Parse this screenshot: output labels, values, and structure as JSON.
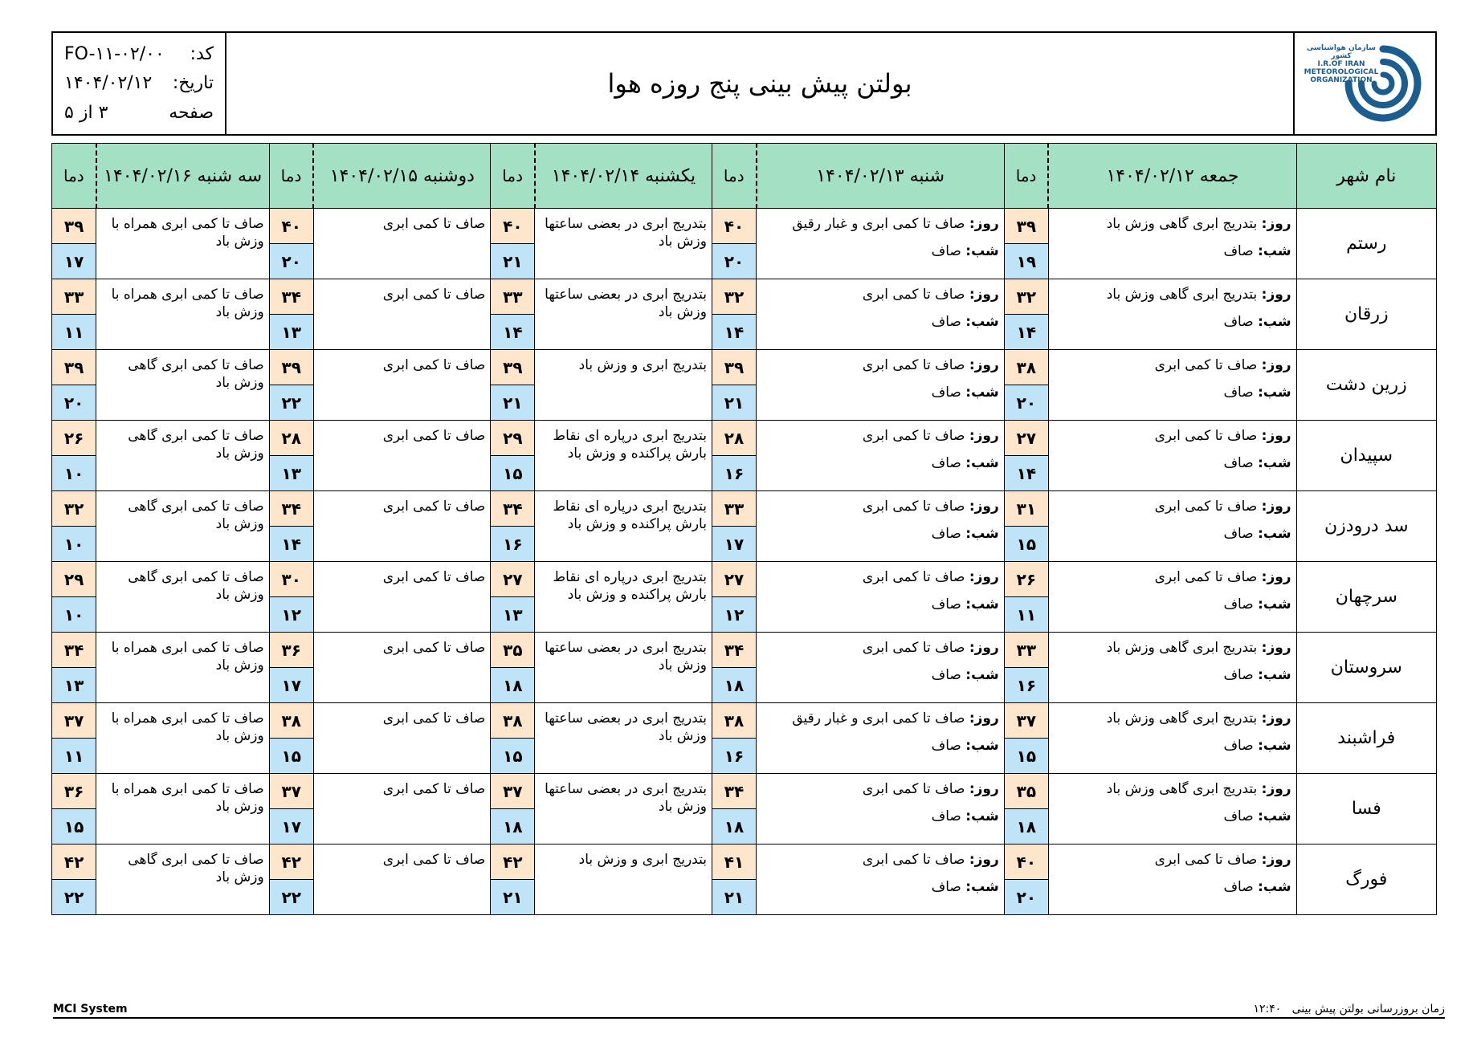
{
  "header": {
    "logo_text_fa": "سازمان هواشناسی کشور",
    "logo_text_en": "I.R.OF IRAN METEOROLOGICAL ORGANIZATION",
    "title": "بولتن پیش بینی پنج روزه هوا",
    "code_label": "کد:",
    "code_value": "FO-۱۱-۰۲/۰۰",
    "date_label": "تاریخ:",
    "date_value": "۱۴۰۴/۰۲/۱۲",
    "page_label": "صفحه",
    "page_text": "۳ از ۵"
  },
  "table": {
    "city_header": "نام شهر",
    "temp_header": "دما",
    "day_label": "روز:",
    "night_label": "شب:",
    "days": [
      "جمعه ۱۴۰۴/۰۲/۱۲",
      "شنبه ۱۴۰۴/۰۲/۱۳",
      "یکشنبه ۱۴۰۴/۰۲/۱۴",
      "دوشنبه ۱۴۰۴/۰۲/۱۵",
      "سه شنبه ۱۴۰۴/۰۲/۱۶"
    ],
    "rows": [
      {
        "city": "رستم",
        "d1_day": "بتدریج ابری گاهی وزش باد",
        "d1_night": "صاف",
        "d1_max": "۳۹",
        "d1_min": "۱۹",
        "d2_day": "صاف تا کمی ابری و غبار رقیق",
        "d2_night": "صاف",
        "d2_max": "۴۰",
        "d2_min": "۲۰",
        "d3": "بتدریج ابری در بعضی ساعتها وزش باد",
        "d3_max": "۴۰",
        "d3_min": "۲۱",
        "d4": "صاف تا کمی ابری",
        "d4_max": "۴۰",
        "d4_min": "۲۰",
        "d5": "صاف تا کمی ابری همراه با وزش باد",
        "d5_max": "۳۹",
        "d5_min": "۱۷"
      },
      {
        "city": "زرقان",
        "d1_day": "بتدریج ابری گاهی وزش باد",
        "d1_night": "صاف",
        "d1_max": "۳۲",
        "d1_min": "۱۴",
        "d2_day": "صاف تا کمی ابری",
        "d2_night": "صاف",
        "d2_max": "۳۲",
        "d2_min": "۱۴",
        "d3": "بتدریج ابری در بعضی ساعتها وزش باد",
        "d3_max": "۳۳",
        "d3_min": "۱۴",
        "d4": "صاف تا کمی ابری",
        "d4_max": "۳۴",
        "d4_min": "۱۳",
        "d5": "صاف تا کمی ابری همراه با وزش باد",
        "d5_max": "۳۳",
        "d5_min": "۱۱"
      },
      {
        "city": "زرین دشت",
        "d1_day": "صاف تا کمی ابری",
        "d1_night": "صاف",
        "d1_max": "۳۸",
        "d1_min": "۲۰",
        "d2_day": "صاف تا کمی ابری",
        "d2_night": "صاف",
        "d2_max": "۳۹",
        "d2_min": "۲۱",
        "d3": "بتدریج ابری و وزش باد",
        "d3_max": "۳۹",
        "d3_min": "۲۱",
        "d4": "صاف تا کمی ابری",
        "d4_max": "۳۹",
        "d4_min": "۲۲",
        "d5": "صاف تا کمی ابری گاهی وزش باد",
        "d5_max": "۳۹",
        "d5_min": "۲۰"
      },
      {
        "city": "سپیدان",
        "d1_day": "صاف تا کمی ابری",
        "d1_night": "صاف",
        "d1_max": "۲۷",
        "d1_min": "۱۴",
        "d2_day": "صاف تا کمی ابری",
        "d2_night": "صاف",
        "d2_max": "۲۸",
        "d2_min": "۱۶",
        "d3": "بتدریج ابری درپاره ای نقاط بارش پراکنده و وزش باد",
        "d3_max": "۲۹",
        "d3_min": "۱۵",
        "d4": "صاف تا کمی ابری",
        "d4_max": "۲۸",
        "d4_min": "۱۳",
        "d5": "صاف تا کمی ابری گاهی وزش باد",
        "d5_max": "۲۶",
        "d5_min": "۱۰"
      },
      {
        "city": "سد درودزن",
        "d1_day": "صاف تا کمی ابری",
        "d1_night": "صاف",
        "d1_max": "۳۱",
        "d1_min": "۱۵",
        "d2_day": "صاف تا کمی ابری",
        "d2_night": "صاف",
        "d2_max": "۳۳",
        "d2_min": "۱۷",
        "d3": "بتدریج ابری درپاره ای نقاط بارش پراکنده و وزش باد",
        "d3_max": "۳۴",
        "d3_min": "۱۶",
        "d4": "صاف تا کمی ابری",
        "d4_max": "۳۴",
        "d4_min": "۱۴",
        "d5": "صاف تا کمی ابری گاهی وزش باد",
        "d5_max": "۳۲",
        "d5_min": "۱۰"
      },
      {
        "city": "سرچهان",
        "d1_day": "صاف تا کمی ابری",
        "d1_night": "صاف",
        "d1_max": "۲۶",
        "d1_min": "۱۱",
        "d2_day": "صاف تا کمی ابری",
        "d2_night": "صاف",
        "d2_max": "۲۷",
        "d2_min": "۱۲",
        "d3": "بتدریج ابری درپاره ای نقاط بارش پراکنده و وزش باد",
        "d3_max": "۲۷",
        "d3_min": "۱۳",
        "d4": "صاف تا کمی ابری",
        "d4_max": "۳۰",
        "d4_min": "۱۲",
        "d5": "صاف تا کمی ابری گاهی وزش باد",
        "d5_max": "۲۹",
        "d5_min": "۱۰"
      },
      {
        "city": "سروستان",
        "d1_day": "بتدریج ابری گاهی وزش باد",
        "d1_night": "صاف",
        "d1_max": "۳۳",
        "d1_min": "۱۶",
        "d2_day": "صاف تا کمی ابری",
        "d2_night": "صاف",
        "d2_max": "۳۴",
        "d2_min": "۱۸",
        "d3": "بتدریج ابری در بعضی ساعتها وزش باد",
        "d3_max": "۳۵",
        "d3_min": "۱۸",
        "d4": "صاف تا کمی ابری",
        "d4_max": "۳۶",
        "d4_min": "۱۷",
        "d5": "صاف تا کمی ابری همراه با وزش باد",
        "d5_max": "۳۴",
        "d5_min": "۱۳"
      },
      {
        "city": "فراشبند",
        "d1_day": "بتدریج ابری گاهی وزش باد",
        "d1_night": "صاف",
        "d1_max": "۳۷",
        "d1_min": "۱۵",
        "d2_day": "صاف تا کمی ابری و غبار رقیق",
        "d2_night": "صاف",
        "d2_max": "۳۸",
        "d2_min": "۱۶",
        "d3": "بتدریج ابری در بعضی ساعتها وزش باد",
        "d3_max": "۳۸",
        "d3_min": "۱۵",
        "d4": "صاف تا کمی ابری",
        "d4_max": "۳۸",
        "d4_min": "۱۵",
        "d5": "صاف تا کمی ابری همراه با وزش باد",
        "d5_max": "۳۷",
        "d5_min": "۱۱"
      },
      {
        "city": "فسا",
        "d1_day": "بتدریج ابری گاهی وزش باد",
        "d1_night": "صاف",
        "d1_max": "۳۵",
        "d1_min": "۱۸",
        "d2_day": "صاف تا کمی ابری",
        "d2_night": "صاف",
        "d2_max": "۳۴",
        "d2_min": "۱۸",
        "d3": "بتدریج ابری در بعضی ساعتها وزش باد",
        "d3_max": "۳۷",
        "d3_min": "۱۸",
        "d4": "صاف تا کمی ابری",
        "d4_max": "۳۷",
        "d4_min": "۱۷",
        "d5": "صاف تا کمی ابری همراه با وزش باد",
        "d5_max": "۳۶",
        "d5_min": "۱۵"
      },
      {
        "city": "فورگ",
        "d1_day": "صاف تا کمی ابری",
        "d1_night": "صاف",
        "d1_max": "۴۰",
        "d1_min": "۲۰",
        "d2_day": "صاف تا کمی ابری",
        "d2_night": "صاف",
        "d2_max": "۴۱",
        "d2_min": "۲۱",
        "d3": "بتدریج ابری و وزش باد",
        "d3_max": "۴۲",
        "d3_min": "۲۱",
        "d4": "صاف تا کمی ابری",
        "d4_max": "۴۲",
        "d4_min": "۲۲",
        "d5": "صاف تا کمی ابری گاهی وزش باد",
        "d5_max": "۴۲",
        "d5_min": "۲۲"
      }
    ]
  },
  "footer": {
    "system": "MCI System",
    "update_label": "زمان بروزرسانی بولتن پیش بینی",
    "update_time": "۱۲:۴۰"
  }
}
